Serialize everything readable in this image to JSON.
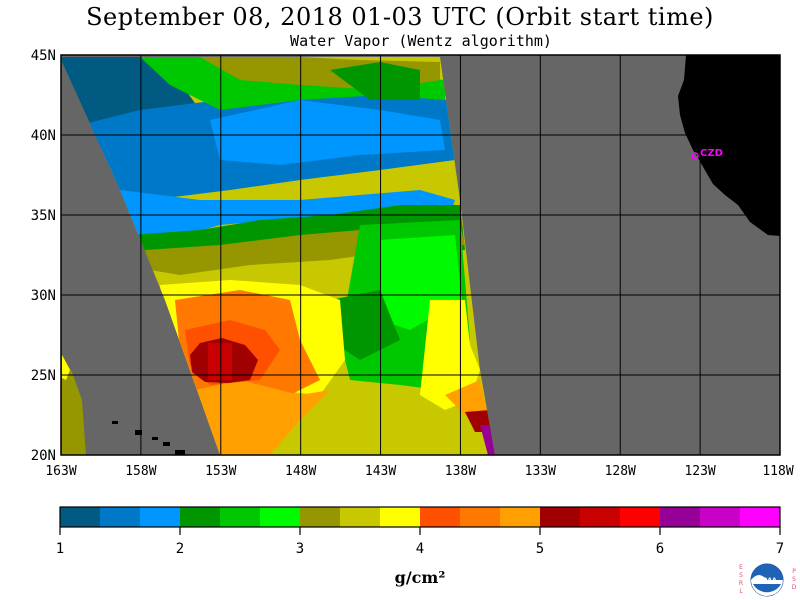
{
  "title": "September 08, 2018  01-03 UTC  (Orbit start time)",
  "subtitle": "Water Vapor (Wentz algorithm)",
  "map": {
    "lat_labels": [
      "45N",
      "40N",
      "35N",
      "30N",
      "25N",
      "20N"
    ],
    "lon_labels": [
      "163W",
      "158W",
      "153W",
      "148W",
      "143W",
      "138W",
      "133W",
      "128W",
      "123W",
      "118W"
    ],
    "lat_range": [
      20,
      45
    ],
    "lon_range": [
      -163,
      -118
    ],
    "station_label": "CZD",
    "station_lat": 38.6,
    "station_lon": -123.2,
    "colors": {
      "no_data": "#666666",
      "land": "#000000",
      "islands": "#000000",
      "station": "#ff00ff",
      "grid": "#000000"
    }
  },
  "colorbar": {
    "tick_labels": [
      "1",
      "2",
      "3",
      "4",
      "5",
      "6",
      "7"
    ],
    "units_label": "g/cm²",
    "range": [
      1,
      7
    ],
    "colors": [
      "#005a82",
      "#0078c8",
      "#0096ff",
      "#009600",
      "#00c800",
      "#00fa00",
      "#969600",
      "#c8c800",
      "#ffff00",
      "#ff5000",
      "#ff7800",
      "#ffa000",
      "#a00000",
      "#c80000",
      "#ff0000",
      "#960096",
      "#c800c8",
      "#ff00ff"
    ]
  },
  "logo": {
    "left_text": "ESRL",
    "right_text": "PSD",
    "center_text": "NOAA"
  }
}
